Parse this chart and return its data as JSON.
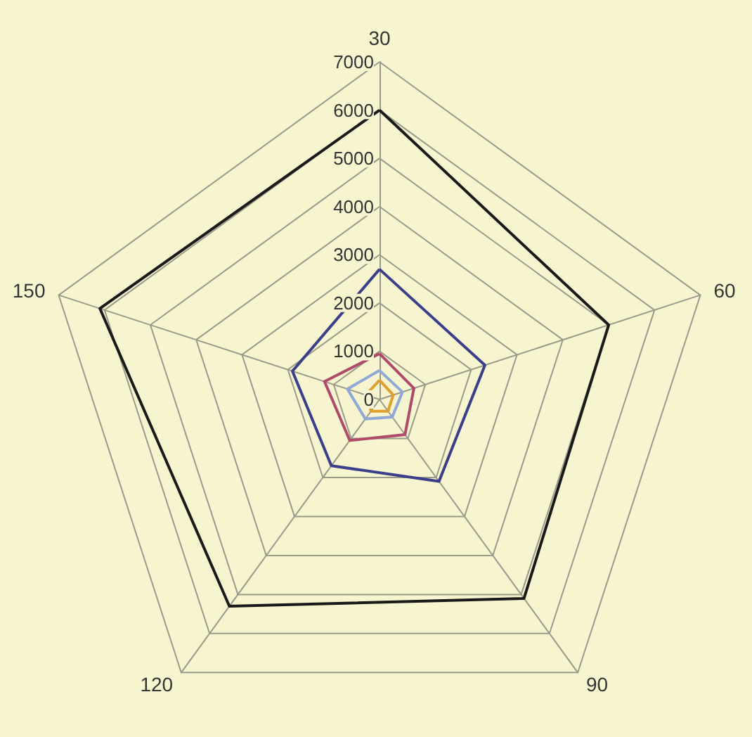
{
  "chart_data": {
    "type": "radar",
    "categories": [
      "30",
      "60",
      "90",
      "120",
      "150"
    ],
    "ylim": [
      0,
      7000
    ],
    "yticks": [
      0,
      1000,
      2000,
      3000,
      4000,
      5000,
      6000,
      7000
    ],
    "grid": true,
    "series": [
      {
        "color": "#1a1a1a",
        "values": [
          6000,
          5000,
          5100,
          5300,
          6100
        ]
      },
      {
        "color": "#3b3f8a",
        "values": [
          2700,
          2300,
          2100,
          1700,
          1900
        ]
      },
      {
        "color": "#b04a6a",
        "values": [
          950,
          750,
          900,
          1050,
          1200
        ]
      },
      {
        "color": "#8fa8d8",
        "values": [
          600,
          500,
          450,
          500,
          700
        ]
      },
      {
        "color": "#e0a030",
        "values": [
          400,
          300,
          300,
          300,
          300
        ]
      }
    ]
  }
}
